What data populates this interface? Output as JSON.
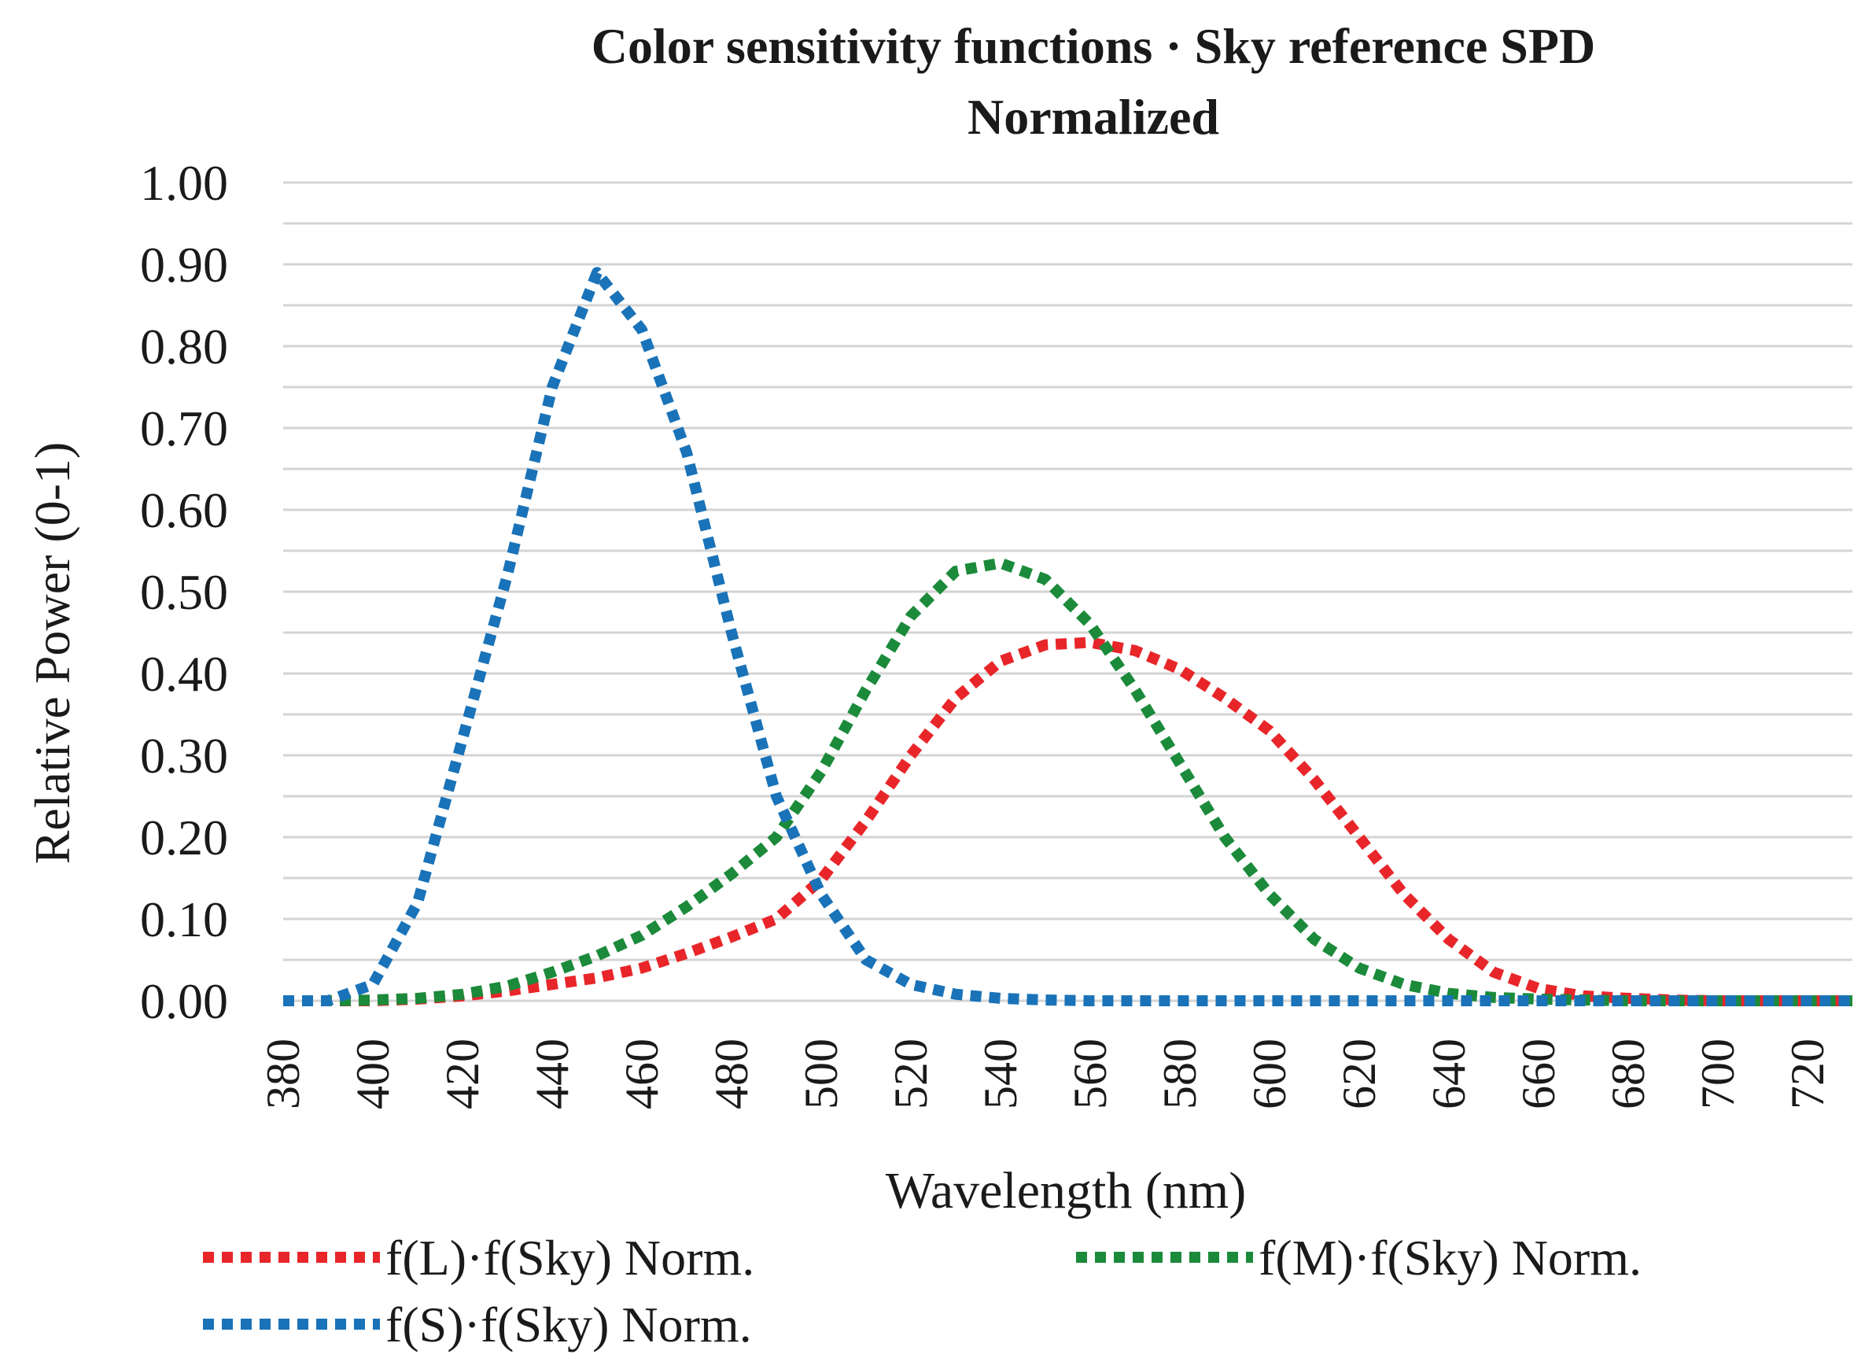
{
  "chart_data": {
    "type": "line",
    "title_line1": "Color sensitivity functions · Sky reference SPD",
    "title_line2": "Normalized",
    "xlabel": "Wavelength (nm)",
    "ylabel": "Relative Power (0-1)",
    "xlim": [
      380,
      730
    ],
    "ylim": [
      0,
      1
    ],
    "x_ticks": [
      "380",
      "400",
      "420",
      "440",
      "460",
      "480",
      "500",
      "520",
      "540",
      "560",
      "580",
      "600",
      "620",
      "640",
      "660",
      "680",
      "700",
      "720"
    ],
    "y_ticks": [
      "0.00",
      "0.10",
      "0.20",
      "0.30",
      "0.40",
      "0.50",
      "0.60",
      "0.70",
      "0.80",
      "0.90",
      "1.00"
    ],
    "grid": "horizontal every 0.05",
    "legend_position": "bottom",
    "series": [
      {
        "name": "f(L)·f(Sky) Norm.",
        "color": "#e8262a",
        "x": [
          380,
          390,
          400,
          410,
          420,
          430,
          440,
          450,
          460,
          470,
          480,
          490,
          500,
          510,
          520,
          530,
          540,
          550,
          560,
          570,
          580,
          590,
          600,
          610,
          620,
          630,
          640,
          650,
          660,
          670,
          680,
          690,
          700,
          710,
          720,
          730
        ],
        "values": [
          0,
          0,
          0,
          0.002,
          0.006,
          0.012,
          0.02,
          0.028,
          0.04,
          0.058,
          0.078,
          0.1,
          0.148,
          0.22,
          0.3,
          0.37,
          0.415,
          0.435,
          0.438,
          0.428,
          0.405,
          0.37,
          0.33,
          0.27,
          0.2,
          0.13,
          0.075,
          0.035,
          0.015,
          0.006,
          0.003,
          0.001,
          0,
          0,
          0,
          0
        ]
      },
      {
        "name": "f(M)·f(Sky) Norm.",
        "color": "#1b8a3a",
        "x": [
          380,
          390,
          400,
          410,
          420,
          430,
          440,
          450,
          460,
          470,
          480,
          490,
          500,
          510,
          520,
          530,
          540,
          550,
          560,
          570,
          580,
          590,
          600,
          610,
          620,
          630,
          640,
          650,
          660,
          670,
          680,
          690,
          700,
          710,
          720,
          730
        ],
        "values": [
          0,
          0,
          0.001,
          0.003,
          0.008,
          0.018,
          0.035,
          0.055,
          0.08,
          0.115,
          0.155,
          0.2,
          0.28,
          0.38,
          0.47,
          0.525,
          0.535,
          0.515,
          0.46,
          0.38,
          0.29,
          0.2,
          0.13,
          0.075,
          0.04,
          0.02,
          0.009,
          0.004,
          0.002,
          0.001,
          0,
          0,
          0,
          0,
          0,
          0
        ]
      },
      {
        "name": "f(S)·f(Sky) Norm.",
        "color": "#1a73b8",
        "x": [
          380,
          390,
          400,
          410,
          420,
          430,
          440,
          450,
          460,
          470,
          480,
          490,
          500,
          510,
          520,
          530,
          540,
          550,
          560,
          570,
          580,
          590,
          600,
          610,
          620,
          630,
          640,
          650,
          660,
          670,
          680,
          690,
          700,
          710,
          720,
          730
        ],
        "values": [
          0,
          0,
          0.02,
          0.12,
          0.32,
          0.52,
          0.75,
          0.89,
          0.82,
          0.67,
          0.45,
          0.25,
          0.13,
          0.05,
          0.02,
          0.008,
          0.003,
          0.001,
          0,
          0,
          0,
          0,
          0,
          0,
          0,
          0,
          0,
          0,
          0,
          0,
          0,
          0,
          0,
          0,
          0,
          0
        ]
      }
    ]
  }
}
